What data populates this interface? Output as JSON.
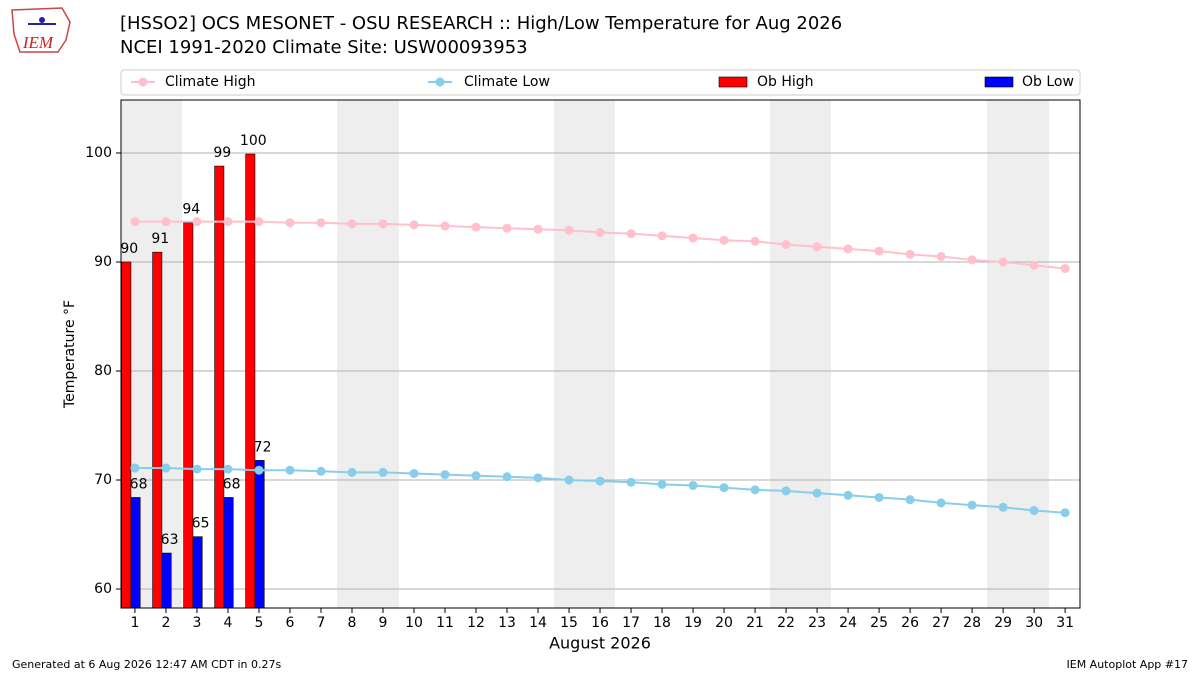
{
  "chart_data": {
    "type": "bar_line",
    "title": "[HSSO2] OCS MESONET - OSU RESEARCH :: High/Low Temperature for Aug 2026",
    "subtitle": "NCEI 1991-2020 Climate Site: USW00093953",
    "xlabel": "August 2026",
    "ylabel": "Temperature °F",
    "logo_text": "IEM",
    "footer_left": "Generated at 6 Aug 2026 12:47 AM CDT in 0.27s",
    "footer_right": "IEM Autoplot App #17",
    "x": [
      1,
      2,
      3,
      4,
      5,
      6,
      7,
      8,
      9,
      10,
      11,
      12,
      13,
      14,
      15,
      16,
      17,
      18,
      19,
      20,
      21,
      22,
      23,
      24,
      25,
      26,
      27,
      28,
      29,
      30,
      31
    ],
    "xlim": [
      0.55,
      31.48
    ],
    "xticks": [
      1,
      2,
      3,
      4,
      5,
      6,
      7,
      8,
      9,
      10,
      11,
      12,
      13,
      14,
      15,
      16,
      17,
      18,
      19,
      20,
      21,
      22,
      23,
      24,
      25,
      26,
      27,
      28,
      29,
      30,
      31
    ],
    "ylim": [
      58.26,
      104.86
    ],
    "yticks": [
      60,
      70,
      80,
      90,
      100
    ],
    "grid": true,
    "legend": "top",
    "series": [
      {
        "name": "Climate High",
        "kind": "line",
        "color": "#ffc0cb",
        "values": [
          93.7,
          93.7,
          93.7,
          93.7,
          93.7,
          93.6,
          93.6,
          93.5,
          93.5,
          93.4,
          93.3,
          93.2,
          93.1,
          93.0,
          92.9,
          92.7,
          92.6,
          92.4,
          92.2,
          92.0,
          91.9,
          91.6,
          91.4,
          91.2,
          91.0,
          90.7,
          90.5,
          90.2,
          90.0,
          89.7,
          89.4
        ]
      },
      {
        "name": "Climate Low",
        "kind": "line",
        "color": "#87ceeb",
        "values": [
          71.1,
          71.1,
          71.0,
          71.0,
          70.9,
          70.9,
          70.8,
          70.7,
          70.7,
          70.6,
          70.5,
          70.4,
          70.3,
          70.2,
          70.0,
          69.9,
          69.8,
          69.6,
          69.5,
          69.3,
          69.1,
          69.0,
          68.8,
          68.6,
          68.4,
          68.2,
          67.9,
          67.7,
          67.5,
          67.2,
          67.0
        ]
      },
      {
        "name": "Ob High",
        "kind": "bar",
        "color": "#ff0000",
        "values": [
          90,
          90.9,
          93.6,
          98.8,
          99.9,
          null,
          null,
          null,
          null,
          null,
          null,
          null,
          null,
          null,
          null,
          null,
          null,
          null,
          null,
          null,
          null,
          null,
          null,
          null,
          null,
          null,
          null,
          null,
          null,
          null,
          null
        ],
        "value_labels": [
          "90",
          "91",
          "94",
          "99",
          "100",
          null,
          null,
          null,
          null,
          null,
          null,
          null,
          null,
          null,
          null,
          null,
          null,
          null,
          null,
          null,
          null,
          null,
          null,
          null,
          null,
          null,
          null,
          null,
          null,
          null,
          null
        ]
      },
      {
        "name": "Ob Low",
        "kind": "bar",
        "color": "#0000ff",
        "values": [
          68.4,
          63.3,
          64.8,
          68.4,
          71.8,
          null,
          null,
          null,
          null,
          null,
          null,
          null,
          null,
          null,
          null,
          null,
          null,
          null,
          null,
          null,
          null,
          null,
          null,
          null,
          null,
          null,
          null,
          null,
          null,
          null,
          null
        ],
        "value_labels": [
          "68",
          "63",
          "65",
          "68",
          "72",
          null,
          null,
          null,
          null,
          null,
          null,
          null,
          null,
          null,
          null,
          null,
          null,
          null,
          null,
          null,
          null,
          null,
          null,
          null,
          null,
          null,
          null,
          null,
          null,
          null,
          null
        ]
      }
    ]
  }
}
